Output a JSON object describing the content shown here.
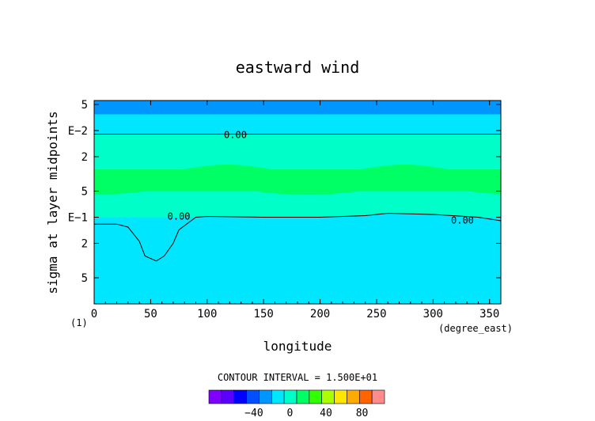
{
  "chart_data": {
    "type": "contour",
    "title": "eastward wind",
    "xlabel": "longitude",
    "x_units": "(degree_east)",
    "ylabel": "sigma at layer midpoints",
    "y_corner_label": "(1)",
    "x_ticks": [
      "0",
      "50",
      "100",
      "150",
      "200",
      "250",
      "300",
      "350"
    ],
    "x_tick_values": [
      0,
      50,
      100,
      150,
      200,
      250,
      300,
      350
    ],
    "xlim": [
      0,
      360
    ],
    "y_scale": "log",
    "y_ticks": [
      "5",
      "E−2",
      "2",
      "5",
      "E−1",
      "2",
      "5"
    ],
    "y_tick_values": [
      0.005,
      0.01,
      0.02,
      0.05,
      0.1,
      0.2,
      0.5
    ],
    "ylim": [
      0.0045,
      1.0
    ],
    "contour_interval_text": "CONTOUR INTERVAL = 1.500E+01",
    "contour_label": "0.00",
    "colorbar": {
      "tick_labels": [
        "−40",
        "0",
        "40",
        "80"
      ],
      "tick_values": [
        -40,
        0,
        40,
        80
      ],
      "levels": [
        -75,
        -60,
        -45,
        -30,
        -15,
        0,
        15,
        30,
        45,
        60,
        75,
        90
      ],
      "colors": [
        "#7f00ff",
        "#5a00ff",
        "#0000ff",
        "#0050ff",
        "#0096ff",
        "#00e6ff",
        "#00ffc8",
        "#00ff64",
        "#32ff00",
        "#aaff00",
        "#ffe600",
        "#ffaa00",
        "#ff6400",
        "#ff8c8c"
      ]
    },
    "bands_sigma_from_top": [
      {
        "from": 0.0045,
        "to": 0.0065,
        "value_range": "-30 to -15",
        "color": "#0096ff"
      },
      {
        "from": 0.0065,
        "to": 0.011,
        "value_range": "-15 to 0",
        "color": "#00e6ff"
      },
      {
        "from": 0.011,
        "to": 0.028,
        "value_range": "0 to 15",
        "color": "#00ffc8"
      },
      {
        "from": 0.028,
        "to": 0.05,
        "value_range": "15 to 30",
        "color": "#00ff64"
      },
      {
        "from": 0.05,
        "to": 0.1,
        "value_range": "0 to 15",
        "color": "#00ffc8"
      },
      {
        "from": 0.1,
        "to": 1.0,
        "value_range": "-15 to 0",
        "color": "#00e6ff"
      }
    ],
    "zero_contour_upper_sigma": 0.011,
    "zero_contour_lower": [
      [
        0,
        0.12
      ],
      [
        20,
        0.12
      ],
      [
        30,
        0.13
      ],
      [
        40,
        0.19
      ],
      [
        45,
        0.28
      ],
      [
        55,
        0.32
      ],
      [
        62,
        0.28
      ],
      [
        70,
        0.2
      ],
      [
        75,
        0.14
      ],
      [
        90,
        0.1
      ],
      [
        100,
        0.098
      ],
      [
        150,
        0.1
      ],
      [
        200,
        0.1
      ],
      [
        240,
        0.096
      ],
      [
        260,
        0.09
      ],
      [
        300,
        0.093
      ],
      [
        340,
        0.1
      ],
      [
        360,
        0.11
      ]
    ]
  }
}
